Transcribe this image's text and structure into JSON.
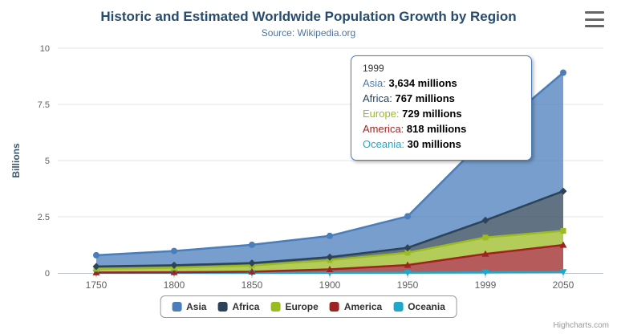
{
  "chart": {
    "title": "Historic and Estimated Worldwide Population Growth by Region",
    "subtitle": "Source: Wikipedia.org",
    "y_axis_title": "Billions",
    "credits": "Highcharts.com"
  },
  "chart_data": {
    "type": "area",
    "stacking": "normal",
    "title": "Historic and Estimated Worldwide Population Growth by Region",
    "subtitle": "Source: Wikipedia.org",
    "categories": [
      "1750",
      "1800",
      "1850",
      "1900",
      "1950",
      "1999",
      "2050"
    ],
    "xlabel": "",
    "ylabel": "Billions",
    "ylim": [
      0,
      10
    ],
    "yticks": [
      0,
      2.5,
      5,
      7.5,
      10
    ],
    "values_unit": "millions",
    "grid": "horizontal",
    "legend_position": "bottom",
    "series": [
      {
        "name": "Asia",
        "color": "#4a7ebb",
        "marker": "circle",
        "values": [
          502,
          635,
          809,
          947,
          1402,
          3634,
          5268
        ]
      },
      {
        "name": "Africa",
        "color": "#2c4358",
        "marker": "diamond",
        "values": [
          106,
          107,
          111,
          133,
          221,
          767,
          1766
        ]
      },
      {
        "name": "Europe",
        "color": "#9bbb22",
        "marker": "square",
        "values": [
          163,
          203,
          276,
          408,
          547,
          729,
          628
        ]
      },
      {
        "name": "America",
        "color": "#9e2424",
        "marker": "triangle",
        "values": [
          18,
          31,
          54,
          156,
          339,
          818,
          1201
        ]
      },
      {
        "name": "Oceania",
        "color": "#1fa8c9",
        "marker": "triangle-down",
        "values": [
          2,
          2,
          2,
          6,
          13,
          30,
          46
        ]
      }
    ],
    "hovered_point": {
      "series": "Asia",
      "category": "1999"
    }
  },
  "tooltip": {
    "header": "1999",
    "rows": [
      {
        "name": "Asia",
        "value": "3,634 millions"
      },
      {
        "name": "Africa",
        "value": "767 millions"
      },
      {
        "name": "Europe",
        "value": "729 millions"
      },
      {
        "name": "America",
        "value": "818 millions"
      },
      {
        "name": "Oceania",
        "value": "30 millions"
      }
    ]
  },
  "legend": {
    "items": [
      "Asia",
      "Africa",
      "Europe",
      "America",
      "Oceania"
    ]
  }
}
